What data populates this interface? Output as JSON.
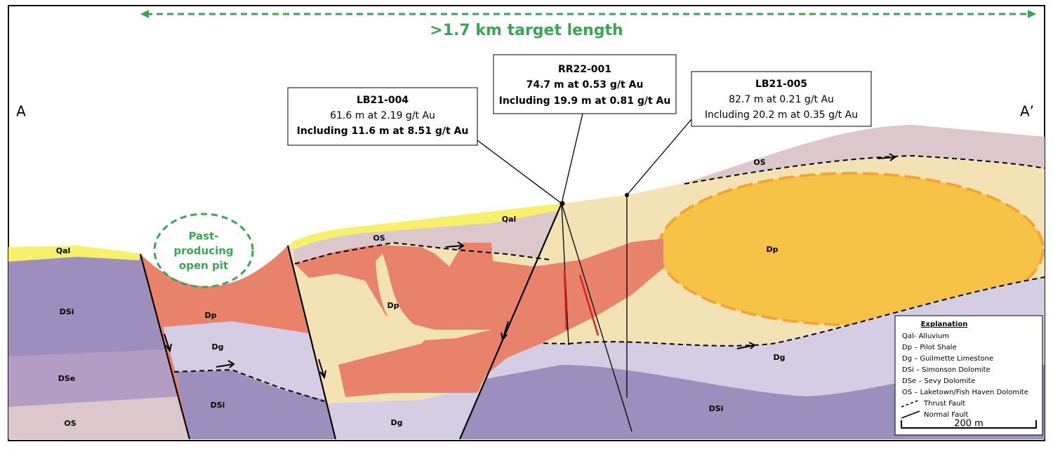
{
  "header": {
    "target_length": ">1.7 km target length"
  },
  "section_ends": [
    "A",
    "A’"
  ],
  "pit_label": [
    "Past-",
    "producing",
    "open pit"
  ],
  "drill_holes": [
    {
      "name": "LB21-004",
      "lines": [
        "61.6 m at 2.19 g/t Au",
        "Including 11.6 m at 8.51 g/t Au"
      ]
    },
    {
      "name": "RR22-001",
      "lines": [
        "74.7 m at 0.53 g/t Au",
        "Including 19.9 m at 0.81 g/t Au"
      ]
    },
    {
      "name": "LB21-005",
      "lines": [
        "82.7 m at 0.21 g/t Au",
        "Including 20.2 m at 0.35 g/t Au"
      ]
    }
  ],
  "unit_labels": [
    "Qal",
    "Qal",
    "OS",
    "OS",
    "OS",
    "DSi",
    "DSe",
    "DSi",
    "DSi",
    "Dp",
    "Dp",
    "Dp",
    "Dg",
    "Dg",
    "Dg"
  ],
  "legend": {
    "title": "Explanation",
    "items": [
      "Qal- Alluvium",
      "Dp – Pilot Shale",
      "Dg – Guilmette Limestone",
      "DSi – Simonson Dolomite",
      "DSe – Sevy Dolomite",
      "OS – Laketown/Fish Haven Dolomite",
      "Thrust Fault",
      "Normal Fault"
    ],
    "scale": "200 m"
  }
}
